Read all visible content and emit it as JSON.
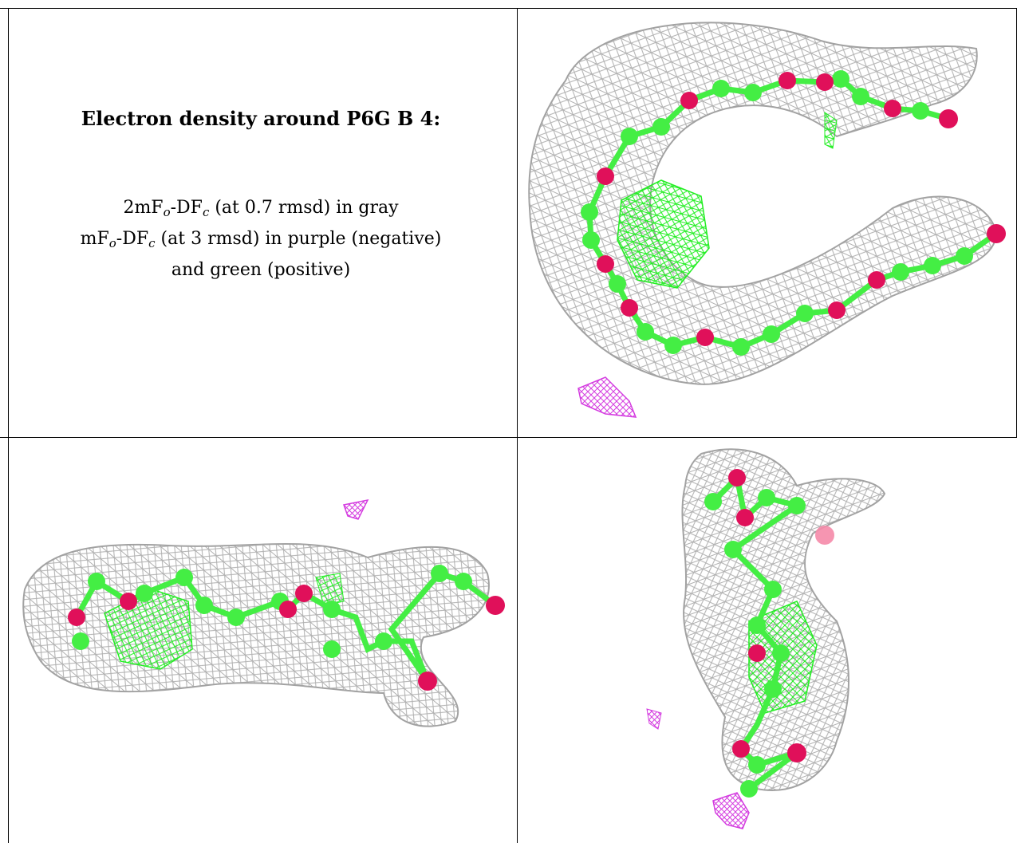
{
  "caption": {
    "title": "Electron density around P6G B 4:",
    "line1": {
      "a": "2mF",
      "sub1": "o",
      "b": "-DF",
      "sub2": "c",
      "c": " (at 0.7 rmsd) in gray"
    },
    "line2": {
      "a": "mF",
      "sub1": "o",
      "b": "-DF",
      "sub2": "c",
      "c": " (at 3 rmsd) in purple (negative)"
    },
    "line3": "and green (positive)"
  },
  "panels": [
    {
      "name": "view-1",
      "content": "2mFo-DFc map, mFo-DFc map, P6G model"
    },
    {
      "name": "view-2",
      "content": "2mFo-DFc map, mFo-DFc map, P6G model"
    },
    {
      "name": "view-3",
      "content": "2mFo-DFc map, mFo-DFc map, P6G model"
    }
  ],
  "colors": {
    "density_2fofc": "#a8a8a8",
    "density_positive": "#22ee22",
    "density_negative": "#d43ce0",
    "carbon": "#44ee44",
    "oxygen": "#e0105a",
    "border": "#000000"
  }
}
